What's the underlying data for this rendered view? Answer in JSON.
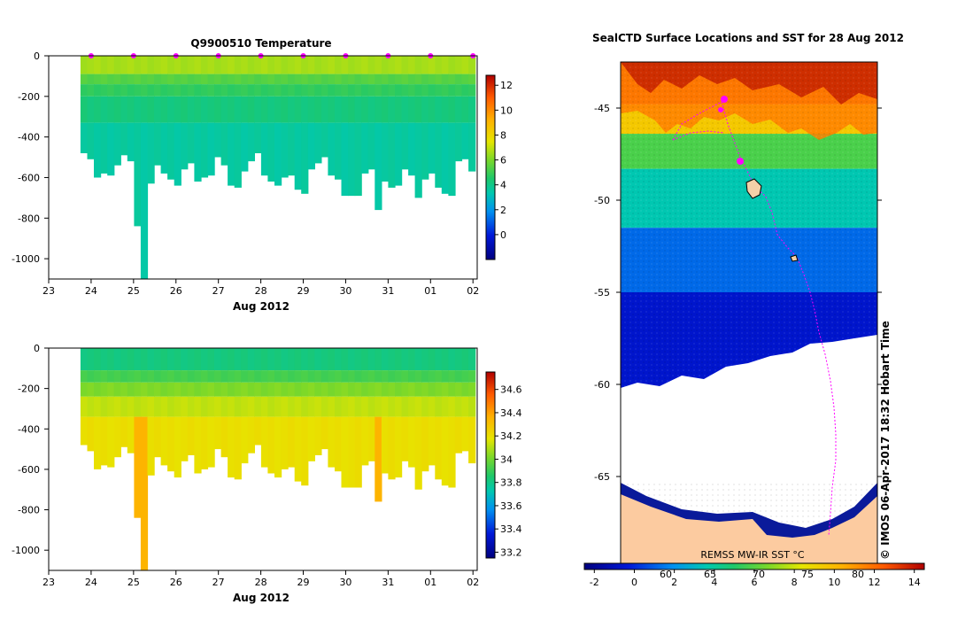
{
  "chart_data": [
    {
      "id": "temperature",
      "type": "heatmap",
      "title": "Q9900510  Temperature",
      "xlabel": "Aug 2012",
      "x_ticks": [
        "23",
        "24",
        "25",
        "26",
        "27",
        "28",
        "29",
        "30",
        "31",
        "01",
        "02"
      ],
      "xlim": [
        23,
        33.1
      ],
      "ylim": [
        -1100,
        0
      ],
      "y_ticks": [
        0,
        -200,
        -400,
        -600,
        -800,
        -1000
      ],
      "colorbar": {
        "min": -2,
        "max": 12.8,
        "ticks": [
          0,
          2,
          4,
          6,
          8,
          10,
          12
        ],
        "tick_labels": [
          "0",
          "2",
          "4",
          "6",
          "8",
          "10",
          "12"
        ]
      },
      "profile_markers": [
        24,
        25,
        26,
        27,
        28,
        29,
        30,
        31,
        32,
        33
      ],
      "profile_bottoms": [
        -480,
        -510,
        -600,
        -580,
        -590,
        -540,
        -490,
        -520,
        -840,
        -1100,
        -630,
        -540,
        -580,
        -610,
        -640,
        -560,
        -530,
        -620,
        -600,
        -590,
        -500,
        -540,
        -640,
        -650,
        -570,
        -520,
        -480,
        -590,
        -620,
        -640,
        -600,
        -590,
        -660,
        -680,
        -560,
        -530,
        -500,
        -590,
        -610,
        -690,
        -690,
        -690,
        -580,
        -560,
        -760,
        -620,
        -650,
        -640,
        -560,
        -590,
        -700,
        -610,
        -580,
        -650,
        -680,
        -690,
        -520,
        -510,
        -570
      ],
      "layers": [
        {
          "top": 0,
          "bottom": -90,
          "value": 6.6
        },
        {
          "top": -90,
          "bottom": -140,
          "value": 5.4
        },
        {
          "top": -140,
          "bottom": -200,
          "value": 4.8
        },
        {
          "top": -200,
          "bottom": -330,
          "value": 4.2
        },
        {
          "top": -330,
          "bottom": -1100,
          "value": 3.6
        }
      ]
    },
    {
      "id": "salinity",
      "type": "heatmap",
      "title": "",
      "xlabel": "Aug 2012",
      "x_ticks": [
        "23",
        "24",
        "25",
        "26",
        "27",
        "28",
        "29",
        "30",
        "31",
        "01",
        "02"
      ],
      "xlim": [
        23,
        33.1
      ],
      "ylim": [
        -1100,
        0
      ],
      "y_ticks": [
        0,
        -200,
        -400,
        -600,
        -800,
        -1000
      ],
      "colorbar": {
        "min": 33.15,
        "max": 34.75,
        "ticks": [
          33.2,
          33.4,
          33.6,
          33.8,
          34,
          34.2,
          34.4,
          34.6
        ],
        "tick_labels": [
          "33.2",
          "33.4",
          "33.6",
          "33.8",
          "34",
          "34.2",
          "34.4",
          "34.6"
        ]
      },
      "layers": [
        {
          "top": 0,
          "bottom": -110,
          "value": 33.82
        },
        {
          "top": -110,
          "bottom": -170,
          "value": 33.92
        },
        {
          "top": -170,
          "bottom": -240,
          "value": 34.02
        },
        {
          "top": -240,
          "bottom": -340,
          "value": 34.12
        },
        {
          "top": -340,
          "bottom": -1100,
          "value": 34.2
        }
      ],
      "deep_value": 34.35
    },
    {
      "id": "sst-map",
      "type": "heatmap",
      "title": "SealCTD  Surface Locations and SST for 28 Aug 2012",
      "ylim": [
        -70,
        -42.5
      ],
      "y_ticks": [
        -45,
        -50,
        -55,
        -60,
        -65
      ],
      "colorbar": {
        "min": -2.5,
        "max": 14.5,
        "ticks": [
          -2,
          0,
          2,
          4,
          6,
          8,
          10,
          12,
          14
        ],
        "tick_labels": [
          "-2",
          "0",
          "2",
          "4",
          "6",
          "8",
          "10",
          "12",
          "14"
        ]
      },
      "sst_bands": [
        {
          "top": -42.5,
          "bottom": -44.8,
          "value": 12.8
        },
        {
          "top": -44.8,
          "bottom": -46.4,
          "value": 9.5
        },
        {
          "top": -46.4,
          "bottom": -48.3,
          "value": 5.8
        },
        {
          "top": -48.3,
          "bottom": -51.5,
          "value": 3.6
        },
        {
          "top": -51.5,
          "bottom": -55.0,
          "value": 1.2
        },
        {
          "top": -55.0,
          "bottom": -60.2,
          "value": -0.6
        }
      ],
      "overlay_labels": [
        "60",
        "65",
        "70",
        "75",
        "80"
      ],
      "source_label": "REMSS MW-IR SST °C",
      "sidebar_text": "© IMOS 06-Apr-2017 18:32 Hobart Time"
    }
  ]
}
